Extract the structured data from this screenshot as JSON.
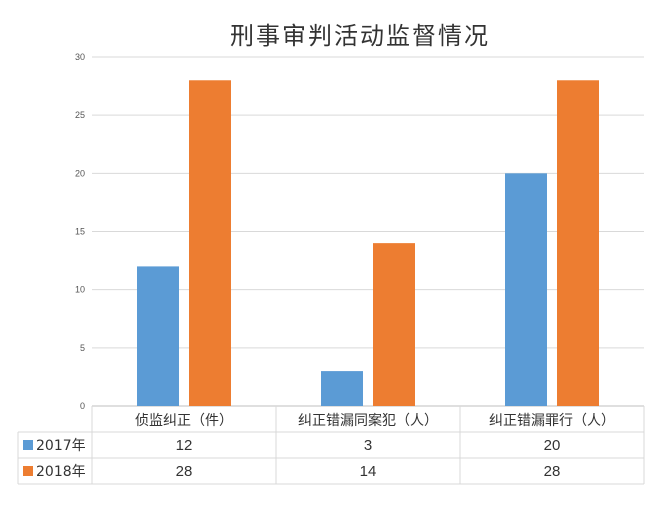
{
  "chart_data": {
    "type": "bar",
    "title": "刑事审判活动监督情况",
    "categories": [
      "侦监纠正（件）",
      "纠正错漏同案犯（人）",
      "纠正错漏罪行（人）"
    ],
    "series": [
      {
        "name": "2017年",
        "values": [
          12,
          3,
          20
        ],
        "color": "#5b9bd5"
      },
      {
        "name": "2018年",
        "values": [
          28,
          14,
          28
        ],
        "color": "#ed7d31"
      }
    ],
    "ylim": [
      0,
      30
    ],
    "yticks": [
      0,
      5,
      10,
      15,
      20,
      25,
      30
    ],
    "grid": true,
    "legend": "data-table"
  }
}
